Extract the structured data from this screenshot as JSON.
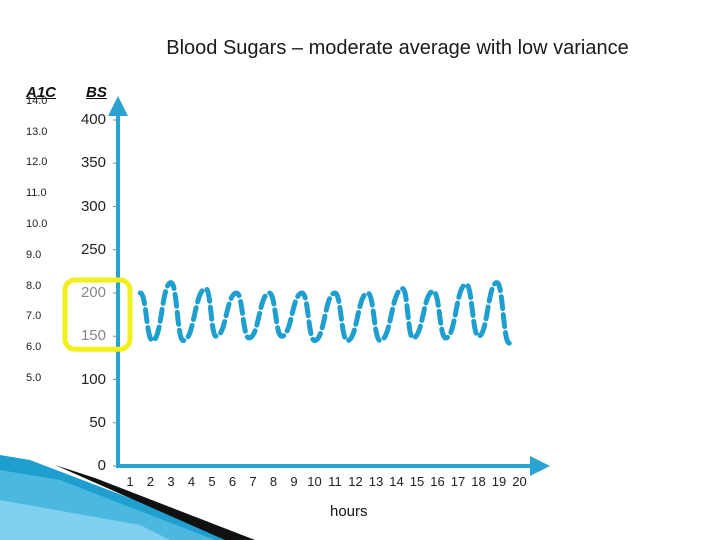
{
  "title": "Blood Sugars – moderate average with low variance",
  "colors": {
    "axis": "#2aa3d0",
    "line": "#1e9fcf",
    "highlight": "#f2ef1c"
  },
  "chart_data": {
    "type": "line",
    "title": "Blood Sugars – moderate average with low variance",
    "xlabel": "hours",
    "ylabel": "BS",
    "secondary_ylabel": "A1C",
    "ylim": [
      0,
      400
    ],
    "yticks": [
      "0",
      "50",
      "100",
      "150",
      "200",
      "250",
      "300",
      "350",
      "400"
    ],
    "a1c_ticks": [
      "5.0",
      "6.0",
      "7.0",
      "8.0",
      "9.0",
      "10.0",
      "11.0",
      "12.0",
      "13.0",
      "14.0"
    ],
    "a1c_values": [
      5,
      6,
      7,
      8,
      9,
      10,
      11,
      12,
      13,
      14
    ],
    "a1c_to_bs": {
      "slope": 35.6,
      "intercept": -77.3
    },
    "x_categories": [
      "1",
      "2",
      "3",
      "4",
      "5",
      "6",
      "7",
      "8",
      "9",
      "10",
      "11",
      "12",
      "13",
      "14",
      "15",
      "16",
      "17",
      "18",
      "19",
      "20"
    ],
    "highlight_range": [
      135,
      215
    ],
    "series": [
      {
        "style": "dashed",
        "x": [
          0.5,
          1.1,
          2.0,
          2.6,
          3.7,
          4.2,
          5.2,
          5.8,
          6.8,
          7.4,
          8.4,
          9.0,
          10.0,
          10.6,
          11.6,
          12.2,
          13.3,
          13.8,
          14.8,
          15.4,
          16.4,
          17.0,
          17.9,
          18.5
        ],
        "y": [
          200,
          145,
          212,
          145,
          205,
          150,
          200,
          148,
          200,
          150,
          200,
          145,
          200,
          145,
          200,
          145,
          205,
          148,
          202,
          148,
          210,
          150,
          212,
          142
        ]
      }
    ],
    "legend": "none",
    "grid": false
  }
}
